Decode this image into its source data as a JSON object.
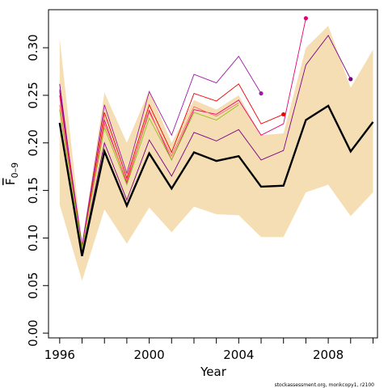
{
  "chart_data": {
    "type": "line",
    "xlabel": "Year",
    "ylabel_main": "F",
    "ylabel_sub": "0–9",
    "xlim": [
      1995.5,
      2010.2
    ],
    "ylim": [
      -0.005,
      0.34
    ],
    "x_ticks": [
      1996,
      2000,
      2004,
      2008
    ],
    "y_ticks": [
      0.0,
      0.05,
      0.1,
      0.15,
      0.2,
      0.25,
      0.3
    ],
    "y_tick_labels": [
      "0.00",
      "0.05",
      "0.10",
      "0.15",
      "0.20",
      "0.25",
      "0.30"
    ],
    "confidence_band": {
      "color": "#f5deb3",
      "x": [
        1996,
        1997,
        1998,
        1999,
        2000,
        2001,
        2002,
        2003,
        2004,
        2005,
        2006,
        2007,
        2008,
        2009,
        2010
      ],
      "upper": [
        0.31,
        0.095,
        0.253,
        0.2,
        0.255,
        0.2,
        0.245,
        0.235,
        0.25,
        0.208,
        0.21,
        0.3,
        0.323,
        0.258,
        0.298
      ],
      "lower": [
        0.135,
        0.055,
        0.13,
        0.094,
        0.132,
        0.106,
        0.133,
        0.125,
        0.124,
        0.101,
        0.101,
        0.148,
        0.156,
        0.123,
        0.148
      ]
    },
    "series": [
      {
        "color": "#000000",
        "width": 2.4,
        "x": [
          1996,
          1997,
          1998,
          1999,
          2000,
          2001,
          2002,
          2003,
          2004,
          2005,
          2006,
          2007,
          2008,
          2009,
          2010
        ],
        "values": [
          0.221,
          0.081,
          0.191,
          0.134,
          0.189,
          0.152,
          0.19,
          0.181,
          0.186,
          0.154,
          0.155,
          0.224,
          0.239,
          0.191,
          0.222
        ]
      },
      {
        "color": "#7b0088",
        "width": 0.9,
        "x": [
          1996,
          1997,
          1998,
          1999,
          2000,
          2001,
          2002,
          2003,
          2004,
          2005,
          2006,
          2007,
          2008,
          2009
        ],
        "values": [
          0.262,
          0.084,
          0.2,
          0.14,
          0.203,
          0.165,
          0.211,
          0.202,
          0.214,
          0.182,
          0.192,
          0.282,
          0.313,
          0.267
        ],
        "end_point": true
      },
      {
        "color": "#e60073",
        "width": 0.9,
        "x": [
          1996,
          1997,
          1998,
          1999,
          2000,
          2001,
          2002,
          2003,
          2004,
          2005,
          2006,
          2007
        ],
        "values": [
          0.25,
          0.087,
          0.224,
          0.158,
          0.234,
          0.182,
          0.235,
          0.23,
          0.245,
          0.208,
          0.22,
          0.331
        ],
        "end_point": true
      },
      {
        "color": "#ee0000",
        "width": 0.9,
        "x": [
          1996,
          1997,
          1998,
          1999,
          2000,
          2001,
          2002,
          2003,
          2004,
          2005,
          2006
        ],
        "values": [
          0.254,
          0.09,
          0.232,
          0.163,
          0.24,
          0.19,
          0.252,
          0.244,
          0.262,
          0.22,
          0.23
        ],
        "end_point": true
      },
      {
        "color": "#a01aa8",
        "width": 0.9,
        "x": [
          1996,
          1997,
          1998,
          1999,
          2000,
          2001,
          2002,
          2003,
          2004,
          2005
        ],
        "values": [
          0.256,
          0.092,
          0.24,
          0.168,
          0.254,
          0.208,
          0.272,
          0.263,
          0.291,
          0.252
        ],
        "end_point": true
      },
      {
        "color": "#ff6b6b",
        "width": 0.9,
        "x": [
          1996,
          1997,
          1998,
          1999,
          2000,
          2001,
          2002,
          2003,
          2004
        ],
        "values": [
          0.24,
          0.089,
          0.22,
          0.16,
          0.232,
          0.186,
          0.238,
          0.228,
          0.242
        ]
      },
      {
        "color": "#8bc21a",
        "width": 0.9,
        "x": [
          1996,
          1997,
          1998,
          1999,
          2000,
          2001,
          2002,
          2003,
          2004
        ],
        "values": [
          0.235,
          0.088,
          0.216,
          0.156,
          0.226,
          0.182,
          0.232,
          0.224,
          0.24
        ]
      }
    ]
  },
  "footnote": "stockassessment.org, monkcopy1, r2100"
}
